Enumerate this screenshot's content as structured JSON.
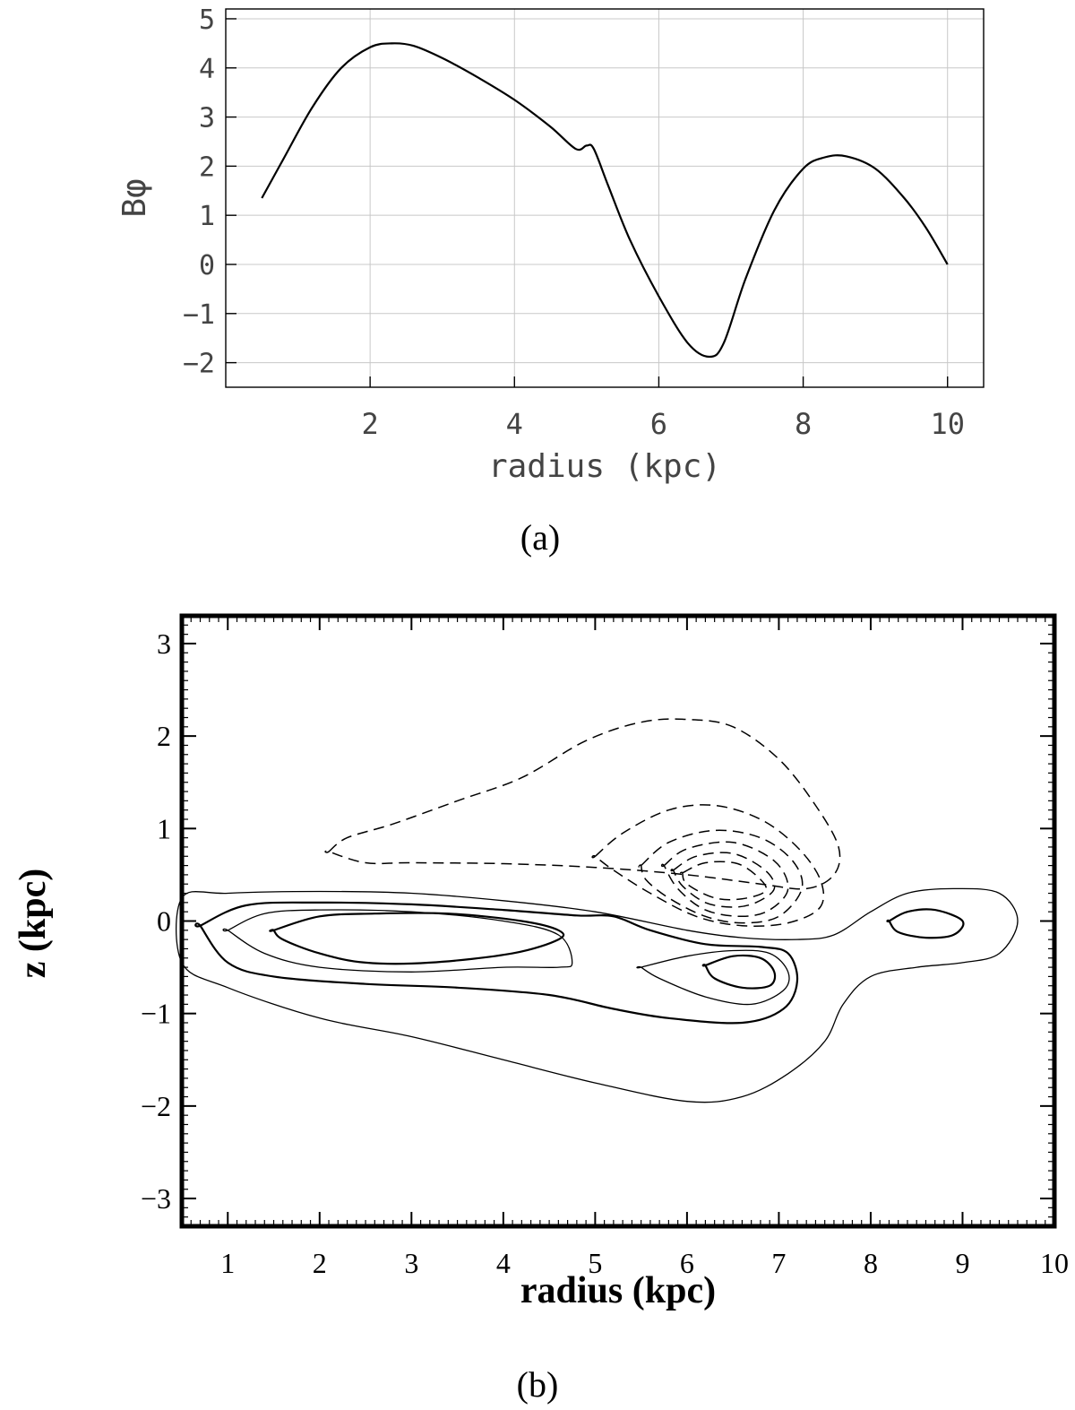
{
  "chart_data": [
    {
      "type": "line",
      "panel_label": "(a)",
      "xlabel": "radius (kpc)",
      "ylabel": "Bφ",
      "xlim": [
        0,
        10.5
      ],
      "ylim": [
        -2.5,
        5.2
      ],
      "grid": true,
      "x_ticks": [
        2,
        4,
        6,
        8,
        10
      ],
      "x_tick_labels": [
        "2",
        "4",
        "6",
        "8",
        "10"
      ],
      "y_ticks": [
        5,
        4,
        3,
        2,
        1,
        0,
        -1,
        -2
      ],
      "y_tick_labels": [
        "5",
        "4",
        "3",
        "2",
        "1",
        "0",
        "−1",
        "−2"
      ],
      "series": [
        {
          "name": "Bφ",
          "style": "solid",
          "x": [
            0.5,
            0.8,
            1.2,
            1.6,
            2.0,
            2.3,
            2.6,
            3.0,
            3.5,
            4.0,
            4.5,
            4.85,
            5.0,
            5.1,
            5.3,
            5.6,
            6.0,
            6.4,
            6.7,
            6.9,
            7.2,
            7.6,
            8.0,
            8.3,
            8.6,
            9.0,
            9.4,
            9.7,
            10.0
          ],
          "y": [
            1.35,
            2.15,
            3.2,
            4.0,
            4.42,
            4.5,
            4.45,
            4.2,
            3.8,
            3.35,
            2.8,
            2.35,
            2.42,
            2.35,
            1.6,
            0.5,
            -0.65,
            -1.6,
            -1.88,
            -1.6,
            -0.3,
            1.1,
            1.95,
            2.18,
            2.2,
            1.95,
            1.35,
            0.75,
            0.0
          ]
        }
      ]
    },
    {
      "type": "contour",
      "panel_label": "(b)",
      "xlabel": "radius (kpc)",
      "ylabel": "z (kpc)",
      "xlim": [
        0.5,
        10
      ],
      "ylim": [
        -3.3,
        3.3
      ],
      "x_ticks": [
        1,
        2,
        3,
        4,
        5,
        6,
        7,
        8,
        9,
        10
      ],
      "x_tick_labels": [
        "1",
        "2",
        "3",
        "4",
        "5",
        "6",
        "7",
        "8",
        "9",
        "10"
      ],
      "y_ticks": [
        3,
        2,
        1,
        0,
        -1,
        -2,
        -3
      ],
      "y_tick_labels": [
        "3",
        "2",
        "1",
        "0",
        "−1",
        "−2",
        "−3"
      ],
      "contours": [
        {
          "sign": "negative",
          "style": "dashed",
          "x": [
            2.1,
            2.3,
            2.8,
            3.5,
            4.2,
            4.9,
            5.5,
            6.0,
            6.5,
            7.0,
            7.4,
            7.65,
            7.6,
            7.3,
            6.8,
            6.0,
            5.0,
            4.0,
            3.0,
            2.5,
            2.1
          ],
          "y": [
            0.75,
            0.9,
            1.05,
            1.3,
            1.55,
            1.95,
            2.15,
            2.18,
            2.1,
            1.75,
            1.25,
            0.8,
            0.5,
            0.35,
            0.4,
            0.5,
            0.58,
            0.62,
            0.63,
            0.63,
            0.75
          ]
        },
        {
          "sign": "negative",
          "style": "dashed",
          "x": [
            5.0,
            5.3,
            5.8,
            6.3,
            6.8,
            7.2,
            7.45,
            7.45,
            7.1,
            6.6,
            6.1,
            5.6,
            5.2,
            5.0
          ],
          "y": [
            0.7,
            0.95,
            1.2,
            1.25,
            1.1,
            0.8,
            0.45,
            0.15,
            -0.02,
            -0.05,
            0.05,
            0.3,
            0.55,
            0.7
          ]
        },
        {
          "sign": "negative",
          "style": "dashed",
          "x": [
            5.5,
            5.8,
            6.3,
            6.8,
            7.15,
            7.25,
            7.0,
            6.6,
            6.2,
            5.8,
            5.55,
            5.5
          ],
          "y": [
            0.6,
            0.85,
            0.98,
            0.9,
            0.65,
            0.35,
            0.05,
            -0.02,
            0.05,
            0.25,
            0.45,
            0.6
          ]
        },
        {
          "sign": "negative",
          "style": "dashed",
          "x": [
            5.75,
            6.0,
            6.5,
            6.95,
            7.1,
            6.9,
            6.6,
            6.2,
            5.9,
            5.75
          ],
          "y": [
            0.6,
            0.78,
            0.85,
            0.65,
            0.35,
            0.12,
            0.05,
            0.12,
            0.35,
            0.6
          ]
        },
        {
          "sign": "negative",
          "style": "dashed",
          "x": [
            5.85,
            6.1,
            6.5,
            6.85,
            6.95,
            6.75,
            6.5,
            6.2,
            5.95,
            5.85
          ],
          "y": [
            0.55,
            0.7,
            0.73,
            0.55,
            0.35,
            0.2,
            0.15,
            0.2,
            0.38,
            0.55
          ]
        },
        {
          "sign": "negative",
          "style": "dashed",
          "x": [
            5.95,
            6.2,
            6.55,
            6.8,
            6.85,
            6.6,
            6.3,
            6.0,
            5.95
          ],
          "y": [
            0.52,
            0.63,
            0.62,
            0.45,
            0.32,
            0.24,
            0.25,
            0.4,
            0.52
          ]
        },
        {
          "sign": "positive",
          "style": "solid-thin",
          "x": [
            0.5,
            1.0,
            2.0,
            3.0,
            4.0,
            5.0,
            6.0,
            6.6,
            7.2,
            7.6,
            8.0,
            8.4,
            8.9,
            9.4,
            9.6,
            9.4,
            9.0,
            8.5,
            8.0,
            7.7,
            7.5,
            7.1,
            6.6,
            6.0,
            5.0,
            4.0,
            3.0,
            2.0,
            1.0,
            0.5
          ],
          "y": [
            0.25,
            0.3,
            0.32,
            0.3,
            0.22,
            0.1,
            -0.1,
            -0.18,
            -0.2,
            -0.15,
            0.1,
            0.3,
            0.35,
            0.3,
            0.0,
            -0.35,
            -0.45,
            -0.5,
            -0.6,
            -0.9,
            -1.3,
            -1.65,
            -1.9,
            -1.95,
            -1.75,
            -1.5,
            -1.25,
            -1.05,
            -0.72,
            -0.45
          ]
        },
        {
          "sign": "positive",
          "style": "solid",
          "x": [
            0.7,
            1.2,
            2.0,
            3.0,
            4.0,
            4.8,
            5.2,
            5.6,
            6.2,
            6.8,
            7.1,
            7.2,
            7.05,
            6.6,
            5.8,
            5.2,
            4.5,
            3.5,
            2.5,
            1.5,
            1.0,
            0.7
          ],
          "y": [
            -0.05,
            0.17,
            0.2,
            0.18,
            0.12,
            0.06,
            0.05,
            -0.1,
            -0.25,
            -0.28,
            -0.35,
            -0.65,
            -0.95,
            -1.1,
            -1.05,
            -0.95,
            -0.8,
            -0.72,
            -0.68,
            -0.6,
            -0.45,
            -0.05
          ]
        },
        {
          "sign": "positive",
          "style": "solid-thin",
          "x": [
            1.0,
            1.4,
            2.0,
            3.0,
            4.0,
            4.6,
            4.75,
            4.6,
            4.0,
            3.0,
            2.0,
            1.4,
            1.0
          ],
          "y": [
            -0.1,
            0.08,
            0.12,
            0.1,
            0.0,
            -0.15,
            -0.45,
            -0.5,
            -0.5,
            -0.55,
            -0.5,
            -0.35,
            -0.1
          ]
        },
        {
          "sign": "positive",
          "style": "solid",
          "x": [
            1.5,
            2.0,
            2.6,
            3.4,
            4.2,
            4.6,
            4.6,
            4.1,
            3.2,
            2.5,
            2.0,
            1.6,
            1.5
          ],
          "y": [
            -0.1,
            0.05,
            0.08,
            0.08,
            0.0,
            -0.1,
            -0.2,
            -0.35,
            -0.45,
            -0.45,
            -0.35,
            -0.2,
            -0.1
          ]
        },
        {
          "sign": "positive",
          "style": "solid-thin",
          "x": [
            5.5,
            6.0,
            6.5,
            6.9,
            7.1,
            7.05,
            6.7,
            6.2,
            5.7,
            5.5
          ],
          "y": [
            -0.5,
            -0.38,
            -0.32,
            -0.35,
            -0.55,
            -0.75,
            -0.9,
            -0.82,
            -0.62,
            -0.5
          ]
        },
        {
          "sign": "positive",
          "style": "solid",
          "x": [
            6.2,
            6.5,
            6.8,
            6.95,
            6.9,
            6.6,
            6.3,
            6.2
          ],
          "y": [
            -0.48,
            -0.38,
            -0.4,
            -0.55,
            -0.7,
            -0.72,
            -0.62,
            -0.48
          ]
        },
        {
          "sign": "positive",
          "style": "solid",
          "x": [
            8.2,
            8.4,
            8.7,
            9.0,
            8.9,
            8.6,
            8.3,
            8.2
          ],
          "y": [
            0.0,
            0.1,
            0.12,
            0.0,
            -0.15,
            -0.18,
            -0.12,
            0.0
          ]
        }
      ]
    }
  ]
}
